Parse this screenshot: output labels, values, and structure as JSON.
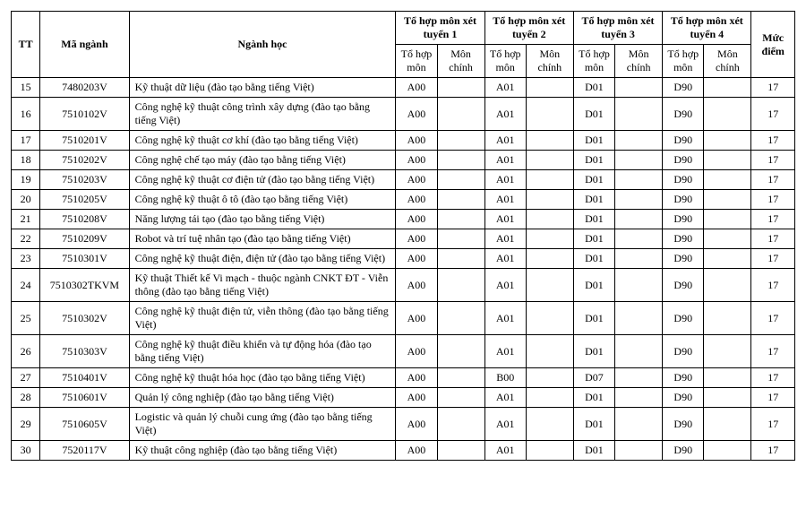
{
  "header": {
    "tt": "TT",
    "ma_nganh": "Mã ngành",
    "nganh_hoc": "Ngành học",
    "thx": [
      "Tổ hợp môn xét tuyển 1",
      "Tổ hợp môn xét tuyển 2",
      "Tổ hợp môn xét tuyển 3",
      "Tổ hợp môn xét tuyển 4"
    ],
    "to_hop_mon": "Tổ hợp môn",
    "mon_chinh": "Môn chính",
    "muc_diem": "Mức điểm"
  },
  "rows": [
    {
      "tt": "15",
      "code": "7480203V",
      "name": "Kỹ thuật dữ liệu (đào tạo bằng tiếng Việt)",
      "c1": "A00",
      "m1": "",
      "c2": "A01",
      "m2": "",
      "c3": "D01",
      "m3": "",
      "c4": "D90",
      "m4": "",
      "score": "17"
    },
    {
      "tt": "16",
      "code": "7510102V",
      "name": "Công nghệ kỹ thuật công trình xây dựng (đào tạo bằng tiếng Việt)",
      "c1": "A00",
      "m1": "",
      "c2": "A01",
      "m2": "",
      "c3": "D01",
      "m3": "",
      "c4": "D90",
      "m4": "",
      "score": "17"
    },
    {
      "tt": "17",
      "code": "7510201V",
      "name": "Công nghệ kỹ thuật cơ khí (đào tạo bằng tiếng Việt)",
      "c1": "A00",
      "m1": "",
      "c2": "A01",
      "m2": "",
      "c3": "D01",
      "m3": "",
      "c4": "D90",
      "m4": "",
      "score": "17"
    },
    {
      "tt": "18",
      "code": "7510202V",
      "name": "Công nghệ chế tạo máy (đào tạo bằng tiếng Việt)",
      "c1": "A00",
      "m1": "",
      "c2": "A01",
      "m2": "",
      "c3": "D01",
      "m3": "",
      "c4": "D90",
      "m4": "",
      "score": "17"
    },
    {
      "tt": "19",
      "code": "7510203V",
      "name": "Công nghệ kỹ thuật cơ điện tử (đào tạo bằng tiếng Việt)",
      "c1": "A00",
      "m1": "",
      "c2": "A01",
      "m2": "",
      "c3": "D01",
      "m3": "",
      "c4": "D90",
      "m4": "",
      "score": "17"
    },
    {
      "tt": "20",
      "code": "7510205V",
      "name": "Công nghệ kỹ thuật ô tô (đào tạo bằng tiếng Việt)",
      "c1": "A00",
      "m1": "",
      "c2": "A01",
      "m2": "",
      "c3": "D01",
      "m3": "",
      "c4": "D90",
      "m4": "",
      "score": "17"
    },
    {
      "tt": "21",
      "code": "7510208V",
      "name": "Năng lượng tái tạo (đào tạo bằng tiếng Việt)",
      "c1": "A00",
      "m1": "",
      "c2": "A01",
      "m2": "",
      "c3": "D01",
      "m3": "",
      "c4": "D90",
      "m4": "",
      "score": "17"
    },
    {
      "tt": "22",
      "code": "7510209V",
      "name": "Robot và trí tuệ nhân tạo  (đào tạo bằng tiếng Việt)",
      "c1": "A00",
      "m1": "",
      "c2": "A01",
      "m2": "",
      "c3": "D01",
      "m3": "",
      "c4": "D90",
      "m4": "",
      "score": "17"
    },
    {
      "tt": "23",
      "code": "7510301V",
      "name": "Công nghệ kỹ thuật điện, điện tử (đào tạo bằng tiếng Việt)",
      "c1": "A00",
      "m1": "",
      "c2": "A01",
      "m2": "",
      "c3": "D01",
      "m3": "",
      "c4": "D90",
      "m4": "",
      "score": "17"
    },
    {
      "tt": "24",
      "code": "7510302TKVM",
      "name": "Kỹ thuật Thiết kế Vi mạch - thuộc ngành CNKT ĐT - Viễn thông (đào tạo bằng tiếng Việt)",
      "c1": "A00",
      "m1": "",
      "c2": "A01",
      "m2": "",
      "c3": "D01",
      "m3": "",
      "c4": "D90",
      "m4": "",
      "score": "17"
    },
    {
      "tt": "25",
      "code": "7510302V",
      "name": "Công nghệ kỹ thuật điện tử, viễn thông (đào tạo bằng tiếng Việt)",
      "c1": "A00",
      "m1": "",
      "c2": "A01",
      "m2": "",
      "c3": "D01",
      "m3": "",
      "c4": "D90",
      "m4": "",
      "score": "17"
    },
    {
      "tt": "26",
      "code": "7510303V",
      "name": "Công nghệ kỹ thuật điều khiển và tự động hóa (đào tạo bằng tiếng Việt)",
      "c1": "A00",
      "m1": "",
      "c2": "A01",
      "m2": "",
      "c3": "D01",
      "m3": "",
      "c4": "D90",
      "m4": "",
      "score": "17"
    },
    {
      "tt": "27",
      "code": "7510401V",
      "name": "Công nghệ kỹ thuật hóa học (đào tạo bằng tiếng Việt)",
      "c1": "A00",
      "m1": "",
      "c2": "B00",
      "m2": "",
      "c3": "D07",
      "m3": "",
      "c4": "D90",
      "m4": "",
      "score": "17"
    },
    {
      "tt": "28",
      "code": "7510601V",
      "name": "Quản lý công nghiệp (đào tạo bằng tiếng Việt)",
      "c1": "A00",
      "m1": "",
      "c2": "A01",
      "m2": "",
      "c3": "D01",
      "m3": "",
      "c4": "D90",
      "m4": "",
      "score": "17"
    },
    {
      "tt": "29",
      "code": "7510605V",
      "name": "Logistic và quản lý chuỗi cung ứng (đào tạo bằng tiếng Việt)",
      "c1": "A00",
      "m1": "",
      "c2": "A01",
      "m2": "",
      "c3": "D01",
      "m3": "",
      "c4": "D90",
      "m4": "",
      "score": "17"
    },
    {
      "tt": "30",
      "code": "7520117V",
      "name": "Kỹ thuật công nghiệp (đào tạo bằng tiếng Việt)",
      "c1": "A00",
      "m1": "",
      "c2": "A01",
      "m2": "",
      "c3": "D01",
      "m3": "",
      "c4": "D90",
      "m4": "",
      "score": "17"
    }
  ]
}
